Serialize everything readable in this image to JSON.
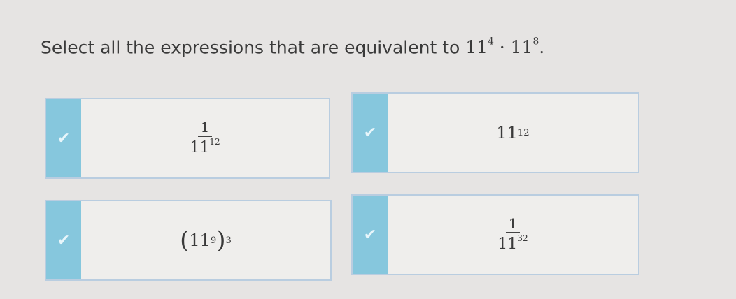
{
  "question": {
    "text": "Select all the expressions that are equivalent to",
    "base1": "11",
    "exp1": "4",
    "dot": "·",
    "base2": "11",
    "exp2": "8",
    "period": "."
  },
  "options": [
    {
      "type": "fraction",
      "numerator": "1",
      "base": "11",
      "exponent": "12",
      "checked": true
    },
    {
      "type": "power",
      "base": "11",
      "exponent": "12",
      "checked": true
    },
    {
      "type": "nested-power",
      "base": "11",
      "inner_exponent": "9",
      "outer_exponent": "3",
      "checked": true
    },
    {
      "type": "fraction",
      "numerator": "1",
      "base": "11",
      "exponent": "32",
      "checked": true
    }
  ],
  "check_glyph": "✔",
  "colors": {
    "checkbox": "#86c7dd",
    "border": "#b9cde0"
  }
}
